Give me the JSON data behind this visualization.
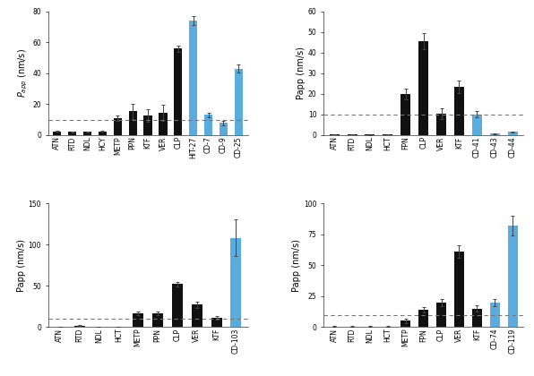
{
  "panels": [
    {
      "ylabel": "P_app (nm/s)",
      "ylabel_style": "italic_sub",
      "ylim": [
        0,
        80
      ],
      "yticks": [
        0,
        20,
        40,
        60,
        80
      ],
      "dashed_line": 10,
      "categories": [
        "ATN",
        "RTD",
        "NDL",
        "HCY",
        "METP",
        "PPN",
        "KTF",
        "VER",
        "CLP",
        "HIT-27",
        "CD-7",
        "CD-9",
        "CD-25"
      ],
      "values": [
        2.5,
        2.2,
        2.0,
        2.3,
        11.0,
        15.5,
        12.5,
        14.5,
        56.0,
        74.0,
        13.0,
        8.0,
        43.0
      ],
      "errors": [
        0.3,
        0.3,
        0.3,
        0.3,
        1.5,
        5.0,
        4.0,
        5.0,
        2.0,
        3.0,
        1.5,
        1.5,
        2.5
      ],
      "colors": [
        "#111111",
        "#111111",
        "#111111",
        "#111111",
        "#111111",
        "#111111",
        "#111111",
        "#111111",
        "#111111",
        "#5aacde",
        "#5aacde",
        "#5aacde",
        "#5aacde"
      ]
    },
    {
      "ylabel": "Papp (nm/s)",
      "ylabel_style": "normal",
      "ylim": [
        0,
        60
      ],
      "yticks": [
        0,
        10,
        20,
        30,
        40,
        50,
        60
      ],
      "dashed_line": 10,
      "categories": [
        "ATN",
        "RTD",
        "NDL",
        "HCT",
        "FPN",
        "CLP",
        "VER",
        "KTF",
        "CD-41",
        "CD-43",
        "CD-44"
      ],
      "values": [
        0.5,
        0.3,
        0.2,
        0.3,
        20.0,
        45.5,
        10.5,
        23.5,
        10.0,
        0.8,
        1.5
      ],
      "errors": [
        0.1,
        0.1,
        0.1,
        0.1,
        2.5,
        4.0,
        2.5,
        3.0,
        1.5,
        0.2,
        0.3
      ],
      "colors": [
        "#111111",
        "#111111",
        "#111111",
        "#111111",
        "#111111",
        "#111111",
        "#111111",
        "#111111",
        "#5aacde",
        "#5aacde",
        "#5aacde"
      ]
    },
    {
      "ylabel": "Papp (nm/s)",
      "ylabel_style": "normal",
      "ylim": [
        0,
        150
      ],
      "yticks": [
        0,
        50,
        100,
        150
      ],
      "dashed_line": 10,
      "categories": [
        "ATN",
        "RTD",
        "NDL",
        "HCT",
        "METP",
        "PPN",
        "CLP",
        "VER",
        "KTF",
        "CD-103"
      ],
      "values": [
        0.5,
        2.0,
        0.5,
        0.5,
        17.0,
        17.0,
        52.0,
        27.0,
        11.0,
        108.0
      ],
      "errors": [
        0.2,
        0.5,
        0.2,
        0.2,
        2.0,
        2.0,
        3.0,
        4.0,
        2.0,
        22.0
      ],
      "colors": [
        "#111111",
        "#111111",
        "#111111",
        "#111111",
        "#111111",
        "#111111",
        "#111111",
        "#111111",
        "#111111",
        "#5aacde"
      ]
    },
    {
      "ylabel": "Papp (nm/s)",
      "ylabel_style": "normal",
      "ylim": [
        0,
        100
      ],
      "yticks": [
        0,
        25,
        50,
        75,
        100
      ],
      "dashed_line": 10,
      "categories": [
        "ATN",
        "RTD",
        "NDL",
        "HCT",
        "METP",
        "FPN",
        "CLP",
        "VER",
        "KTF",
        "CD-74",
        "CD-119"
      ],
      "values": [
        0.5,
        0.5,
        0.5,
        0.5,
        5.0,
        14.0,
        20.0,
        61.0,
        15.0,
        20.0,
        82.0
      ],
      "errors": [
        0.2,
        0.2,
        0.2,
        0.2,
        1.5,
        2.5,
        3.0,
        5.0,
        2.5,
        3.0,
        8.0
      ],
      "colors": [
        "#111111",
        "#111111",
        "#111111",
        "#111111",
        "#111111",
        "#111111",
        "#111111",
        "#111111",
        "#111111",
        "#5aacde",
        "#5aacde"
      ]
    }
  ],
  "background_color": "#ffffff",
  "tick_fontsize": 5.5,
  "label_fontsize": 7,
  "bar_width": 0.55,
  "ecolor": "#444444"
}
